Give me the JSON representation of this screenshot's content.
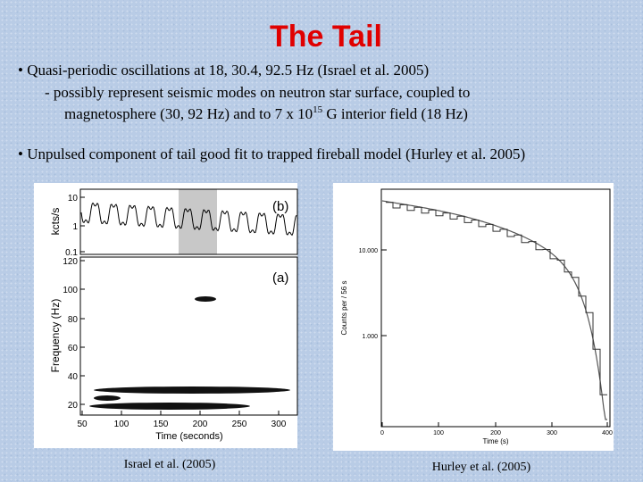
{
  "title": "The Tail",
  "bullets": [
    {
      "text": "• Quasi-periodic oscillations at 18, 30.4, 92.5 Hz (Israel et al. 2005)",
      "sub_line1": "- possibly represent seismic modes on neutron star surface, coupled to",
      "sub_line2": "magnetosphere (30, 92 Hz) and to 7 x 10",
      "sub_sup": "15",
      "sub_rest": " G interior field (18 Hz)"
    },
    {
      "text": "• Unpulsed component of tail good fit to trapped fireball model  (Hurley et al. 2005)"
    }
  ],
  "figures": [
    {
      "panel_top": "(b)",
      "panel_bottom": "(a)",
      "ylabel_top": "kcts/s",
      "ylabel_bottom": "Frequency (Hz)",
      "xlabel": "Time (seconds)",
      "yticks_top": [
        "10",
        "1",
        "0.1"
      ],
      "yticks_bottom": [
        "120",
        "100",
        "80",
        "60",
        "40",
        "20"
      ],
      "xticks": [
        "50",
        "100",
        "150",
        "200",
        "250",
        "300"
      ],
      "caption": "Israel et al. (2005)"
    },
    {
      "ylabel": "Counts per / 56 s",
      "xlabel": "Time (s)",
      "yticks": [
        "10.000",
        "1.000"
      ],
      "xticks": [
        "0",
        "100",
        "200",
        "300",
        "400"
      ],
      "caption": "Hurley et al. (2005)"
    }
  ]
}
